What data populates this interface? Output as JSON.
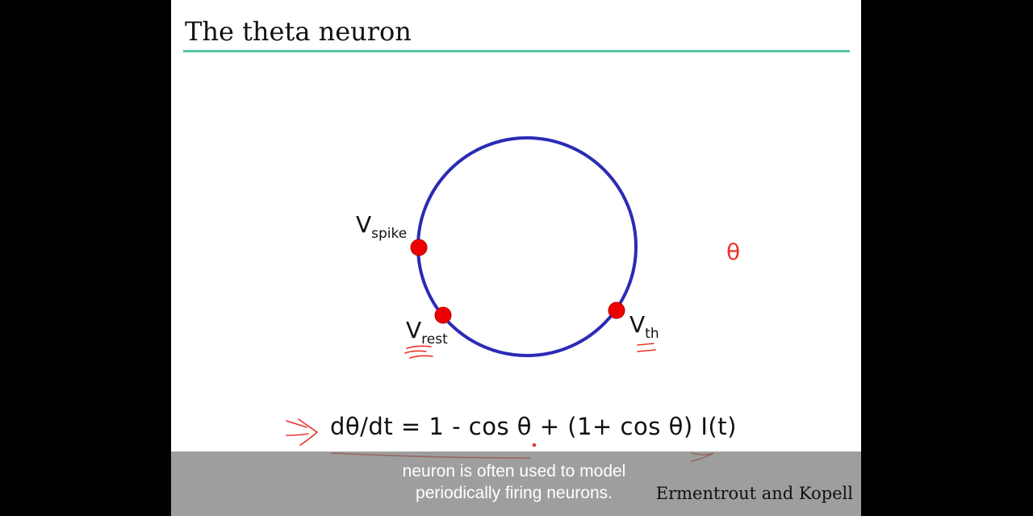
{
  "slide": {
    "title": "The theta neuron",
    "equation": "dθ/dt = 1 - cos θ + (1+ cos θ) I(t)",
    "citation": "Ermentrout and Kopell",
    "labels": {
      "v_spike": {
        "main": "V",
        "sub": "spike"
      },
      "v_rest": {
        "main": "V",
        "sub": "rest"
      },
      "v_th": {
        "main": "V",
        "sub": "th"
      }
    },
    "annotation_theta": "θ"
  },
  "caption": {
    "line1": "neuron is often used to model",
    "line2": "periodically firing neurons."
  },
  "colors": {
    "circle": "#2b2bb5",
    "points": "#ee0000",
    "annotation": "#e8332b",
    "title_rule": "#5cc7a3"
  }
}
